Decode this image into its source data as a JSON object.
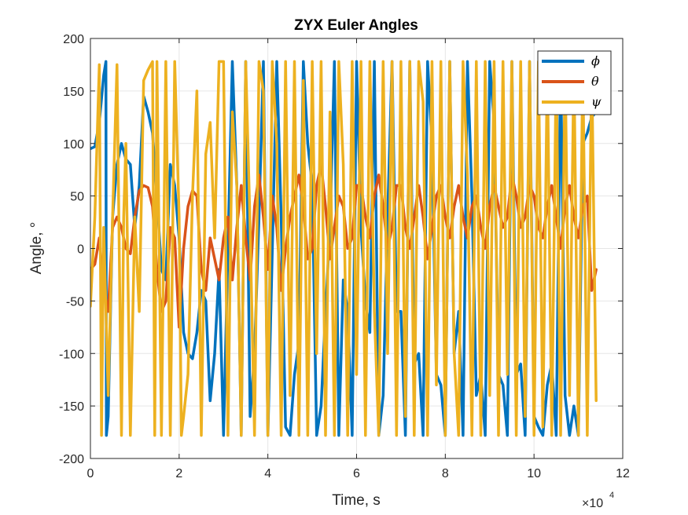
{
  "chart_data": {
    "type": "line",
    "title": "ZYX Euler Angles",
    "xlabel": "Time, s",
    "ylabel": "Angle, °",
    "x_exponent_base": "×10",
    "x_exponent_power": "4",
    "xlim": [
      0,
      12
    ],
    "ylim": [
      -200,
      200
    ],
    "xticks": [
      "0",
      "2",
      "4",
      "6",
      "8",
      "10",
      "12"
    ],
    "yticks": [
      "200",
      "150",
      "100",
      "50",
      "0",
      "-50",
      "-100",
      "-150",
      "-200"
    ],
    "grid": true,
    "legend_position": "top-right",
    "series": [
      {
        "name": "ϕ",
        "color": "#0072BD",
        "x": [
          0,
          0.1,
          0.2,
          0.3,
          0.35,
          0.36,
          0.4,
          0.5,
          0.6,
          0.7,
          0.8,
          0.9,
          1.0,
          1.1,
          1.2,
          1.3,
          1.4,
          1.5,
          1.6,
          1.7,
          1.8,
          1.9,
          2.0,
          2.1,
          2.2,
          2.3,
          2.4,
          2.5,
          2.6,
          2.7,
          2.8,
          2.9,
          3.0,
          3.2,
          3.3,
          3.4,
          3.5,
          3.6,
          3.7,
          3.8,
          3.9,
          4.0,
          4.2,
          4.3,
          4.4,
          4.5,
          4.6,
          4.7,
          4.8,
          4.9,
          5.0,
          5.1,
          5.2,
          5.3,
          5.4,
          5.5,
          5.6,
          5.7,
          5.8,
          5.9,
          6.0,
          6.1,
          6.2,
          6.3,
          6.4,
          6.5,
          6.6,
          6.7,
          6.8,
          6.9,
          7.0,
          7.1,
          7.2,
          7.3,
          7.4,
          7.5,
          7.6,
          7.7,
          7.8,
          7.9,
          8.0,
          8.1,
          8.2,
          8.3,
          8.4,
          8.5,
          8.6,
          8.7,
          8.8,
          8.9,
          9.0,
          9.1,
          9.2,
          9.3,
          9.4,
          9.5,
          9.6,
          9.7,
          9.8,
          9.9,
          10.0,
          10.1,
          10.2,
          10.3,
          10.4,
          10.5,
          10.6,
          10.7,
          10.8,
          10.9,
          11.0,
          11.1,
          11.2,
          11.3,
          11.4
        ],
        "values": [
          95,
          97,
          120,
          165,
          178,
          -178,
          -160,
          30,
          80,
          100,
          85,
          80,
          20,
          60,
          145,
          130,
          110,
          50,
          -20,
          -30,
          80,
          60,
          10,
          -80,
          -100,
          -105,
          -80,
          -40,
          -50,
          -145,
          -100,
          -20,
          -178,
          178,
          60,
          -178,
          178,
          -160,
          -100,
          30,
          178,
          -178,
          178,
          30,
          -170,
          -178,
          -120,
          -90,
          178,
          100,
          60,
          -178,
          -150,
          -60,
          20,
          178,
          -178,
          -30,
          -60,
          -178,
          178,
          20,
          -50,
          -80,
          178,
          -178,
          -140,
          30,
          178,
          -60,
          -60,
          -178,
          178,
          -110,
          -100,
          -178,
          178,
          100,
          -120,
          -130,
          -178,
          178,
          -100,
          -60,
          -178,
          178,
          50,
          -140,
          -120,
          -178,
          178,
          120,
          -120,
          -130,
          -178,
          178,
          -120,
          -110,
          -178,
          178,
          -160,
          -170,
          -178,
          -130,
          -110,
          -178,
          178,
          -140,
          -178,
          -150,
          -178,
          100,
          110,
          125,
          130
        ]
      },
      {
        "name": "θ",
        "color": "#D95319",
        "x": [
          0,
          0.1,
          0.2,
          0.3,
          0.4,
          0.5,
          0.6,
          0.7,
          0.8,
          0.9,
          1.0,
          1.1,
          1.2,
          1.3,
          1.4,
          1.5,
          1.6,
          1.7,
          1.8,
          1.9,
          2.0,
          2.1,
          2.2,
          2.3,
          2.4,
          2.5,
          2.6,
          2.7,
          2.8,
          2.9,
          3.0,
          3.1,
          3.2,
          3.3,
          3.4,
          3.5,
          3.6,
          3.7,
          3.8,
          3.9,
          4.0,
          4.1,
          4.2,
          4.3,
          4.4,
          4.5,
          4.6,
          4.7,
          4.8,
          4.9,
          5.0,
          5.1,
          5.2,
          5.3,
          5.4,
          5.5,
          5.6,
          5.7,
          5.8,
          5.9,
          6.0,
          6.1,
          6.2,
          6.3,
          6.4,
          6.5,
          6.6,
          6.7,
          6.8,
          6.9,
          7.0,
          7.1,
          7.2,
          7.3,
          7.4,
          7.5,
          7.6,
          7.7,
          7.8,
          7.9,
          8.0,
          8.1,
          8.2,
          8.3,
          8.4,
          8.5,
          8.6,
          8.7,
          8.8,
          8.9,
          9.0,
          9.1,
          9.2,
          9.3,
          9.4,
          9.5,
          9.6,
          9.7,
          9.8,
          9.9,
          10.0,
          10.1,
          10.2,
          10.3,
          10.4,
          10.5,
          10.6,
          10.7,
          10.8,
          10.9,
          11.0,
          11.1,
          11.2,
          11.3,
          11.4
        ],
        "values": [
          -20,
          -15,
          10,
          -40,
          -60,
          20,
          30,
          20,
          0,
          -5,
          30,
          55,
          60,
          58,
          40,
          -20,
          -60,
          -50,
          20,
          10,
          -75,
          0,
          40,
          55,
          50,
          -20,
          -40,
          10,
          -10,
          -30,
          10,
          30,
          -30,
          20,
          60,
          10,
          -30,
          40,
          70,
          30,
          -20,
          50,
          20,
          -40,
          0,
          30,
          50,
          70,
          40,
          -10,
          0,
          60,
          80,
          40,
          -10,
          20,
          50,
          40,
          0,
          10,
          60,
          60,
          30,
          10,
          50,
          70,
          40,
          0,
          20,
          60,
          60,
          20,
          0,
          30,
          60,
          30,
          -10,
          20,
          50,
          60,
          30,
          10,
          40,
          60,
          30,
          10,
          40,
          50,
          20,
          0,
          40,
          60,
          40,
          20,
          30,
          70,
          50,
          20,
          30,
          60,
          50,
          20,
          10,
          40,
          60,
          30,
          0,
          40,
          60,
          30,
          10,
          40,
          50,
          -40,
          -20
        ]
      },
      {
        "name": "ψ",
        "color": "#EDB120",
        "x": [
          0,
          0.1,
          0.2,
          0.25,
          0.3,
          0.4,
          0.5,
          0.6,
          0.7,
          0.75,
          0.8,
          0.9,
          1.0,
          1.1,
          1.2,
          1.3,
          1.4,
          1.45,
          1.5,
          1.6,
          1.7,
          1.8,
          1.9,
          2.0,
          2.05,
          2.1,
          2.2,
          2.3,
          2.4,
          2.5,
          2.6,
          2.7,
          2.8,
          2.9,
          3.0,
          3.1,
          3.2,
          3.3,
          3.4,
          3.5,
          3.6,
          3.7,
          3.8,
          3.9,
          4.0,
          4.1,
          4.2,
          4.3,
          4.4,
          4.5,
          4.6,
          4.7,
          4.8,
          4.9,
          5.0,
          5.1,
          5.2,
          5.3,
          5.4,
          5.5,
          5.6,
          5.7,
          5.8,
          5.9,
          6.0,
          6.1,
          6.2,
          6.3,
          6.4,
          6.5,
          6.6,
          6.7,
          6.8,
          6.9,
          7.0,
          7.1,
          7.2,
          7.3,
          7.4,
          7.5,
          7.6,
          7.7,
          7.8,
          7.9,
          8.0,
          8.1,
          8.2,
          8.3,
          8.4,
          8.5,
          8.6,
          8.7,
          8.8,
          8.9,
          9.0,
          9.1,
          9.2,
          9.3,
          9.4,
          9.5,
          9.6,
          9.7,
          9.8,
          9.9,
          10.0,
          10.1,
          10.2,
          10.3,
          10.4,
          10.5,
          10.6,
          10.7,
          10.8,
          10.9,
          11.0,
          11.1,
          11.2,
          11.3,
          11.4
        ],
        "values": [
          -55,
          30,
          175,
          -178,
          20,
          -140,
          30,
          175,
          -178,
          30,
          100,
          -178,
          30,
          -60,
          160,
          170,
          178,
          -178,
          178,
          -178,
          178,
          -178,
          178,
          30,
          -178,
          -160,
          -120,
          50,
          150,
          -178,
          90,
          120,
          10,
          178,
          178,
          -178,
          130,
          60,
          -178,
          178,
          20,
          -178,
          178,
          150,
          -178,
          178,
          100,
          -178,
          178,
          -140,
          178,
          -178,
          160,
          -178,
          178,
          -100,
          178,
          -178,
          130,
          -178,
          178,
          80,
          -178,
          178,
          -120,
          178,
          -178,
          178,
          -60,
          -178,
          178,
          -100,
          178,
          -178,
          178,
          -160,
          178,
          -178,
          178,
          140,
          -178,
          178,
          -130,
          178,
          -178,
          178,
          -100,
          -178,
          178,
          70,
          -178,
          178,
          -178,
          178,
          -140,
          178,
          -178,
          178,
          -120,
          178,
          -178,
          178,
          -160,
          178,
          -178,
          178,
          -170,
          178,
          -178,
          178,
          -178,
          178,
          -140,
          178,
          -178,
          178,
          -178,
          178,
          -145
        ]
      }
    ]
  }
}
